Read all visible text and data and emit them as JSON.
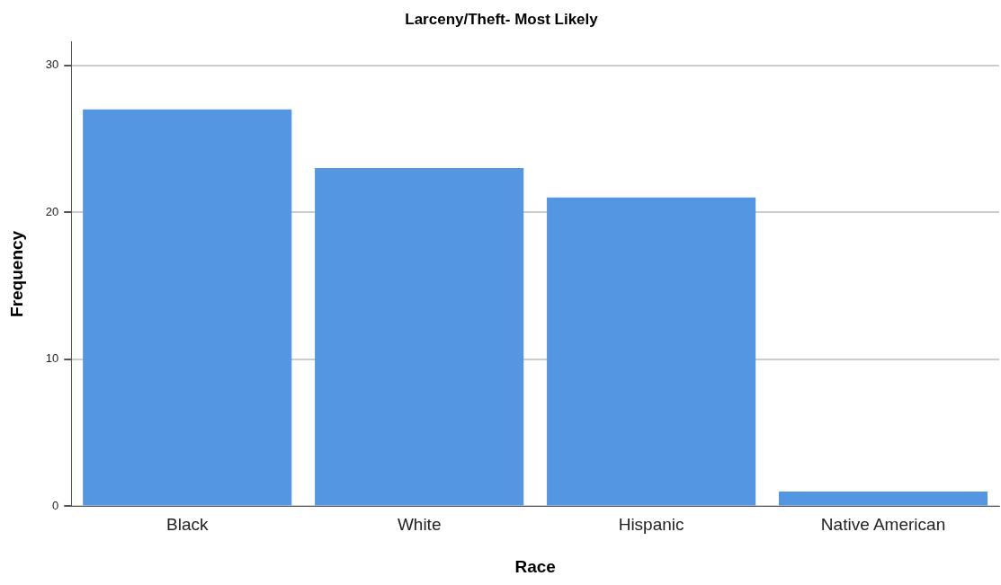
{
  "chart_data": {
    "type": "bar",
    "title": "Larceny/Theft- Most Likely",
    "xlabel": "Race",
    "ylabel": "Frequency",
    "categories": [
      "Black",
      "White",
      "Hispanic",
      "Native American"
    ],
    "values": [
      27,
      23,
      21,
      1
    ],
    "color": "#5596e3",
    "ylim": [
      0,
      31.6
    ],
    "yticks": [
      0,
      10,
      20,
      30
    ],
    "grid": "y",
    "legend": false
  }
}
